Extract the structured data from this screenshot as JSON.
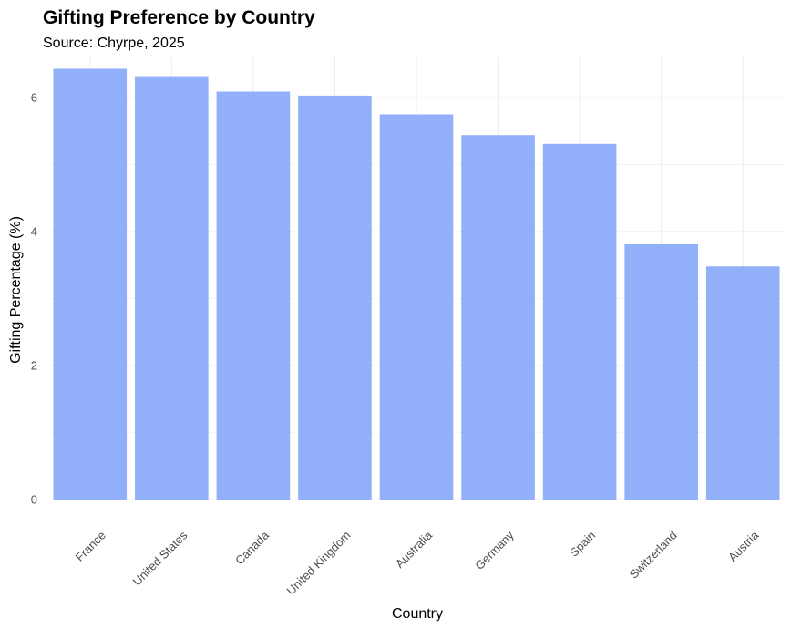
{
  "chart_data": {
    "type": "bar",
    "title": "Gifting Preference by Country",
    "subtitle": "Source: Chyrpe, 2025",
    "xlabel": "Country",
    "ylabel": "Gifting Percentage (%)",
    "categories": [
      "France",
      "United States",
      "Canada",
      "United Kingdom",
      "Australia",
      "Germany",
      "Spain",
      "Switzerland",
      "Austria"
    ],
    "values": [
      6.43,
      6.32,
      6.09,
      6.03,
      5.75,
      5.44,
      5.31,
      3.81,
      3.48
    ],
    "ylim": [
      0,
      6.6
    ],
    "yticks": [
      0,
      2,
      4,
      6
    ],
    "grid": true,
    "legend": "none",
    "bar_color": "#92b0f9"
  }
}
